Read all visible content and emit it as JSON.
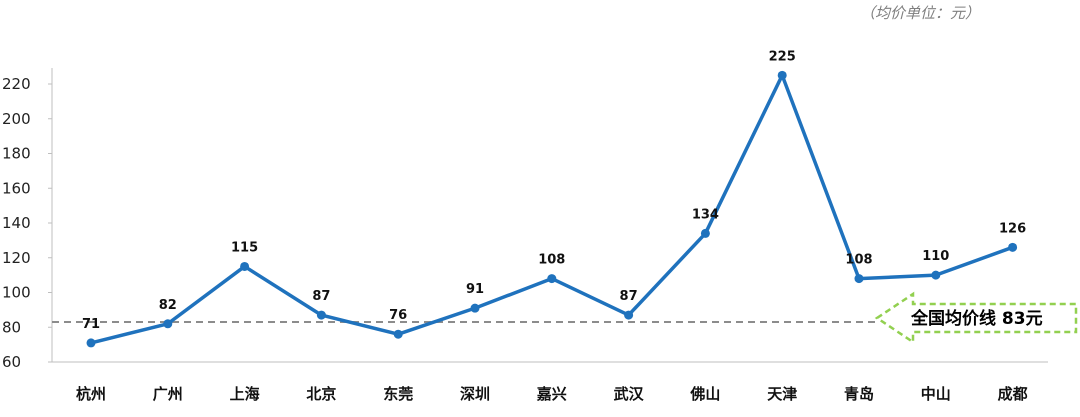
{
  "unit_note": "（均价单位：元）",
  "chart_data": {
    "type": "line",
    "title": "",
    "xlabel": "",
    "ylabel": "",
    "ylim": [
      60,
      230
    ],
    "yticks": [
      60,
      80,
      100,
      120,
      140,
      160,
      180,
      200,
      220
    ],
    "categories": [
      "杭州",
      "广州",
      "上海",
      "北京",
      "东莞",
      "深圳",
      "嘉兴",
      "武汉",
      "佛山",
      "天津",
      "青岛",
      "中山",
      "成都"
    ],
    "values": [
      71,
      82,
      115,
      87,
      76,
      91,
      108,
      87,
      134,
      225,
      108,
      110,
      126
    ],
    "grid": false,
    "colors": {
      "line": "#1f72bd",
      "reference": "#8c8c8c",
      "callout_border": "#92d050"
    },
    "reference_line": {
      "value": 83,
      "label": "全国均价线 83元"
    }
  }
}
